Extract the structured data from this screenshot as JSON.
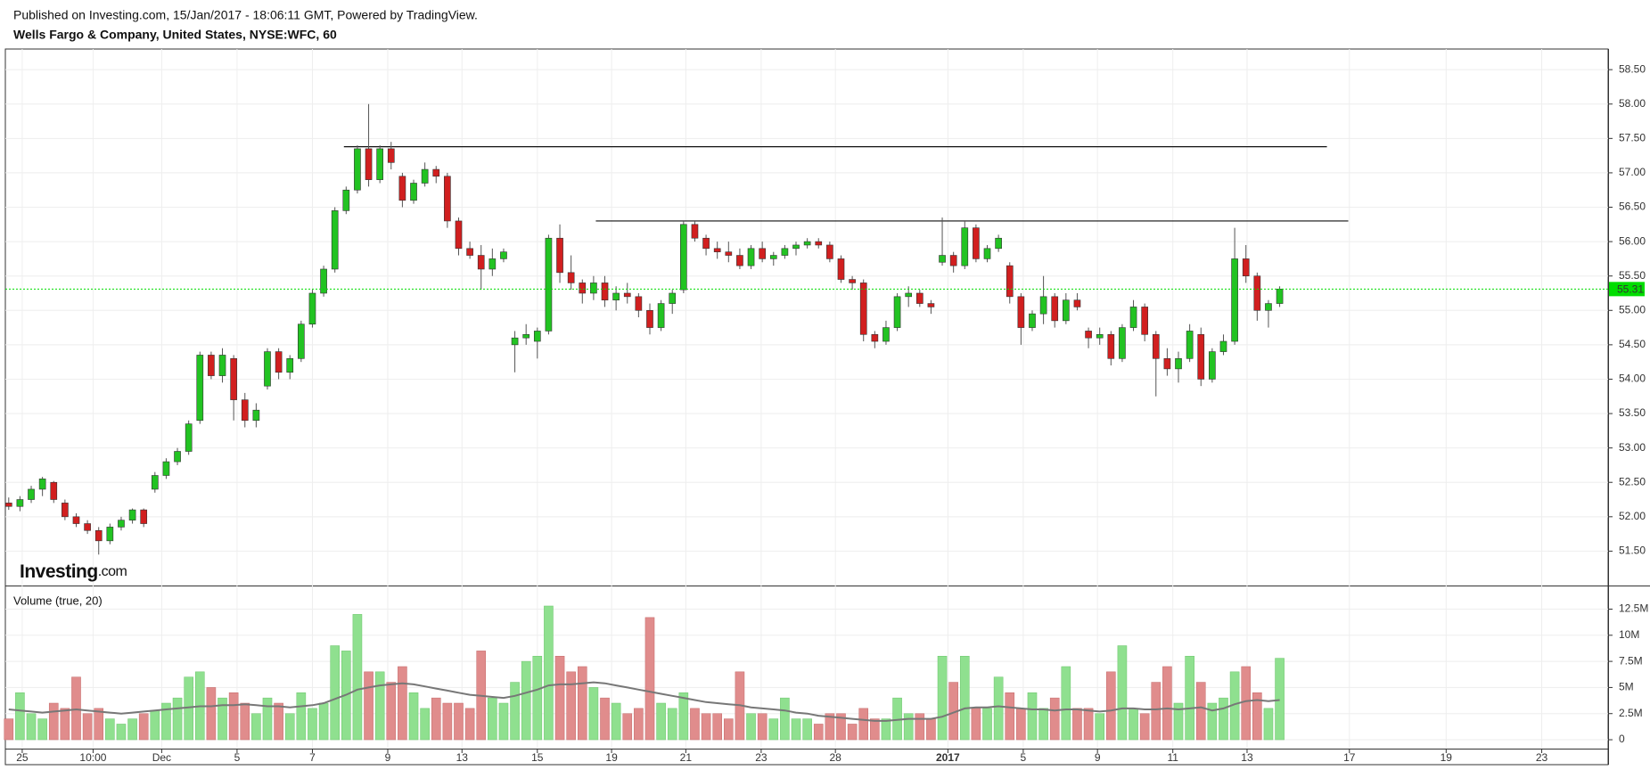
{
  "header": {
    "published": "Published on Investing.com, 15/Jan/2017 - 18:06:11 GMT, Powered by TradingView.",
    "symbol": "Wells Fargo & Company, United States, NYSE:WFC, 60"
  },
  "logo": {
    "brand": "Investing",
    "suffix": ".com"
  },
  "chart_data": [
    {
      "type": "candlestick",
      "up_color": "#22c322",
      "down_color": "#d11f1f",
      "grid": true,
      "xlim": [
        -0.3,
        142.2
      ],
      "ylim": [
        51.0,
        58.8
      ],
      "yticks": [
        {
          "value": 51.5,
          "label": "51.50"
        },
        {
          "value": 52,
          "label": "52.00"
        },
        {
          "value": 52.5,
          "label": "52.50"
        },
        {
          "value": 53,
          "label": "53.00"
        },
        {
          "value": 53.5,
          "label": "53.50"
        },
        {
          "value": 54,
          "label": "54.00"
        },
        {
          "value": 54.5,
          "label": "54.50"
        },
        {
          "value": 55,
          "label": "55.00"
        },
        {
          "value": 55.5,
          "label": "55.50"
        },
        {
          "value": 56,
          "label": "56.00"
        },
        {
          "value": 56.5,
          "label": "56.50"
        },
        {
          "value": 57,
          "label": "57.00"
        },
        {
          "value": 57.5,
          "label": "57.50"
        },
        {
          "value": 58,
          "label": "58.00"
        },
        {
          "value": 58.5,
          "label": "58.50"
        }
      ],
      "last_price": 55.31,
      "last_price_color": "#00dd00",
      "annotations": [
        {
          "y": 57.38,
          "x": [
            29.8,
            117.2
          ]
        },
        {
          "y": 56.3,
          "x": [
            52.2,
            119.1
          ]
        }
      ],
      "ohlc": [
        [
          52.2,
          52.28,
          52.1,
          52.15
        ],
        [
          52.15,
          52.3,
          52.08,
          52.25
        ],
        [
          52.25,
          52.45,
          52.2,
          52.4
        ],
        [
          52.4,
          52.58,
          52.3,
          52.55
        ],
        [
          52.5,
          52.52,
          52.2,
          52.25
        ],
        [
          52.2,
          52.25,
          51.95,
          52.0
        ],
        [
          52.0,
          52.05,
          51.85,
          51.9
        ],
        [
          51.9,
          51.95,
          51.75,
          51.8
        ],
        [
          51.8,
          51.85,
          51.45,
          51.65
        ],
        [
          51.65,
          51.9,
          51.6,
          51.85
        ],
        [
          51.85,
          52.0,
          51.8,
          51.95
        ],
        [
          51.95,
          52.12,
          51.9,
          52.1
        ],
        [
          52.1,
          52.12,
          51.85,
          51.9
        ],
        [
          52.4,
          52.65,
          52.35,
          52.6
        ],
        [
          52.6,
          52.85,
          52.55,
          52.8
        ],
        [
          52.8,
          53.0,
          52.75,
          52.95
        ],
        [
          52.95,
          53.4,
          52.9,
          53.35
        ],
        [
          53.4,
          54.4,
          53.35,
          54.35
        ],
        [
          54.35,
          54.4,
          54.0,
          54.05
        ],
        [
          54.05,
          54.45,
          53.95,
          54.35
        ],
        [
          54.3,
          54.35,
          53.4,
          53.7
        ],
        [
          53.7,
          53.8,
          53.3,
          53.4
        ],
        [
          53.4,
          53.65,
          53.3,
          53.55
        ],
        [
          53.9,
          54.45,
          53.85,
          54.4
        ],
        [
          54.4,
          54.45,
          54.0,
          54.1
        ],
        [
          54.1,
          54.35,
          54.0,
          54.3
        ],
        [
          54.3,
          54.85,
          54.25,
          54.8
        ],
        [
          54.8,
          55.3,
          54.75,
          55.25
        ],
        [
          55.25,
          55.65,
          55.2,
          55.6
        ],
        [
          55.6,
          56.5,
          55.55,
          56.45
        ],
        [
          56.45,
          56.8,
          56.4,
          56.75
        ],
        [
          56.75,
          57.4,
          56.7,
          57.35
        ],
        [
          57.35,
          58.0,
          56.8,
          56.9
        ],
        [
          56.9,
          57.4,
          56.85,
          57.35
        ],
        [
          57.35,
          57.45,
          57.05,
          57.15
        ],
        [
          56.95,
          57.0,
          56.5,
          56.6
        ],
        [
          56.6,
          56.9,
          56.55,
          56.85
        ],
        [
          56.85,
          57.15,
          56.8,
          57.05
        ],
        [
          57.05,
          57.1,
          56.85,
          56.95
        ],
        [
          56.95,
          57.0,
          56.2,
          56.3
        ],
        [
          56.3,
          56.35,
          55.8,
          55.9
        ],
        [
          55.9,
          56.0,
          55.75,
          55.8
        ],
        [
          55.8,
          55.95,
          55.3,
          55.6
        ],
        [
          55.6,
          55.9,
          55.5,
          55.75
        ],
        [
          55.75,
          55.9,
          55.7,
          55.85
        ],
        [
          54.5,
          54.7,
          54.1,
          54.6
        ],
        [
          54.6,
          54.8,
          54.5,
          54.65
        ],
        [
          54.55,
          54.75,
          54.3,
          54.7
        ],
        [
          54.7,
          56.1,
          54.65,
          56.05
        ],
        [
          56.05,
          56.25,
          55.4,
          55.55
        ],
        [
          55.55,
          55.8,
          55.3,
          55.4
        ],
        [
          55.4,
          55.45,
          55.1,
          55.25
        ],
        [
          55.25,
          55.5,
          55.15,
          55.4
        ],
        [
          55.4,
          55.5,
          55.05,
          55.15
        ],
        [
          55.15,
          55.35,
          55.0,
          55.25
        ],
        [
          55.25,
          55.4,
          55.1,
          55.2
        ],
        [
          55.2,
          55.25,
          54.9,
          55.0
        ],
        [
          55.0,
          55.1,
          54.65,
          54.75
        ],
        [
          54.75,
          55.15,
          54.7,
          55.1
        ],
        [
          55.1,
          55.3,
          54.95,
          55.25
        ],
        [
          55.3,
          56.3,
          55.25,
          56.25
        ],
        [
          56.25,
          56.3,
          56.0,
          56.05
        ],
        [
          56.05,
          56.1,
          55.8,
          55.9
        ],
        [
          55.9,
          56.0,
          55.75,
          55.85
        ],
        [
          55.85,
          56.0,
          55.7,
          55.8
        ],
        [
          55.8,
          55.9,
          55.6,
          55.65
        ],
        [
          55.65,
          55.95,
          55.6,
          55.9
        ],
        [
          55.9,
          56.0,
          55.7,
          55.75
        ],
        [
          55.75,
          55.85,
          55.65,
          55.8
        ],
        [
          55.8,
          55.95,
          55.75,
          55.9
        ],
        [
          55.9,
          56.0,
          55.8,
          55.95
        ],
        [
          55.95,
          56.05,
          55.9,
          56.0
        ],
        [
          56.0,
          56.05,
          55.9,
          55.95
        ],
        [
          55.95,
          56.0,
          55.7,
          55.75
        ],
        [
          55.75,
          55.8,
          55.4,
          55.45
        ],
        [
          55.45,
          55.5,
          55.3,
          55.4
        ],
        [
          55.4,
          55.45,
          54.55,
          54.65
        ],
        [
          54.65,
          54.7,
          54.45,
          54.55
        ],
        [
          54.55,
          54.85,
          54.5,
          54.75
        ],
        [
          54.75,
          55.25,
          54.7,
          55.2
        ],
        [
          55.2,
          55.35,
          55.05,
          55.25
        ],
        [
          55.25,
          55.3,
          55.05,
          55.1
        ],
        [
          55.1,
          55.15,
          54.95,
          55.05
        ],
        [
          55.7,
          56.35,
          55.65,
          55.8
        ],
        [
          55.8,
          55.85,
          55.55,
          55.65
        ],
        [
          55.65,
          56.3,
          55.6,
          56.2
        ],
        [
          56.2,
          56.25,
          55.7,
          55.75
        ],
        [
          55.75,
          55.95,
          55.7,
          55.9
        ],
        [
          55.9,
          56.1,
          55.85,
          56.05
        ],
        [
          55.65,
          55.7,
          55.1,
          55.2
        ],
        [
          55.2,
          55.25,
          54.5,
          54.75
        ],
        [
          54.75,
          55.0,
          54.7,
          54.95
        ],
        [
          54.95,
          55.5,
          54.8,
          55.2
        ],
        [
          55.2,
          55.25,
          54.75,
          54.85
        ],
        [
          54.85,
          55.25,
          54.8,
          55.15
        ],
        [
          55.15,
          55.25,
          55.0,
          55.05
        ],
        [
          54.7,
          54.75,
          54.45,
          54.6
        ],
        [
          54.6,
          54.75,
          54.5,
          54.65
        ],
        [
          54.65,
          54.7,
          54.2,
          54.3
        ],
        [
          54.3,
          54.8,
          54.25,
          54.75
        ],
        [
          54.75,
          55.15,
          54.7,
          55.05
        ],
        [
          55.05,
          55.1,
          54.55,
          54.65
        ],
        [
          54.65,
          54.7,
          53.75,
          54.3
        ],
        [
          54.3,
          54.45,
          54.05,
          54.15
        ],
        [
          54.15,
          54.4,
          53.95,
          54.3
        ],
        [
          54.3,
          54.8,
          54.25,
          54.7
        ],
        [
          54.65,
          54.75,
          53.9,
          54.0
        ],
        [
          54.0,
          54.45,
          53.95,
          54.4
        ],
        [
          54.4,
          54.65,
          54.35,
          54.55
        ],
        [
          54.55,
          56.2,
          54.5,
          55.75
        ],
        [
          55.75,
          55.95,
          55.4,
          55.5
        ],
        [
          55.5,
          55.55,
          54.85,
          55.0
        ],
        [
          55.0,
          55.15,
          54.75,
          55.1
        ],
        [
          55.1,
          55.35,
          55.05,
          55.31
        ]
      ]
    },
    {
      "type": "bar",
      "title": "Volume (true, 20)",
      "up_color": "#8fe08f",
      "down_color": "#e08c8c",
      "ma_color": "#777777",
      "grid": true,
      "xlim": [
        -0.3,
        142.2
      ],
      "ylim": [
        -0.85,
        14.76
      ],
      "yticks": [
        0,
        {
          "value": 2.5,
          "label": "2.5M"
        },
        {
          "value": 5,
          "label": "5M"
        },
        {
          "value": 7.5,
          "label": "7.5M"
        },
        {
          "value": 10,
          "label": "10M"
        },
        {
          "value": 12.5,
          "label": "12.5M"
        }
      ],
      "xticks": [
        {
          "value": 1.2,
          "label": "25"
        },
        {
          "value": 7.5,
          "label": "10:00"
        },
        {
          "value": 13.6,
          "label": "Dec"
        },
        {
          "value": 20.3,
          "label": "5"
        },
        {
          "value": 27.0,
          "label": "7"
        },
        {
          "value": 33.7,
          "label": "9"
        },
        {
          "value": 40.3,
          "label": "13"
        },
        {
          "value": 47.0,
          "label": "15"
        },
        {
          "value": 53.6,
          "label": "19"
        },
        {
          "value": 60.2,
          "label": "21"
        },
        {
          "value": 66.9,
          "label": "23"
        },
        {
          "value": 73.5,
          "label": "28"
        },
        {
          "value": 83.5,
          "label": "2017",
          "bold": true
        },
        {
          "value": 90.2,
          "label": "5"
        },
        {
          "value": 96.8,
          "label": "9"
        },
        {
          "value": 103.5,
          "label": "11"
        },
        {
          "value": 110.1,
          "label": "13"
        },
        {
          "value": 119.2,
          "label": "17"
        },
        {
          "value": 127.8,
          "label": "19"
        },
        {
          "value": 136.3,
          "label": "23"
        }
      ],
      "values": [
        2.0,
        4.5,
        2.5,
        2.0,
        3.5,
        3.0,
        6.0,
        2.5,
        3.0,
        2.0,
        1.5,
        2.0,
        2.5,
        2.8,
        3.5,
        4.0,
        6.0,
        6.5,
        5.0,
        4.0,
        4.5,
        3.5,
        2.5,
        4.0,
        3.5,
        2.5,
        4.5,
        3.0,
        3.5,
        9.0,
        8.5,
        12.0,
        6.5,
        6.5,
        5.5,
        7.0,
        4.5,
        3.0,
        4.0,
        3.5,
        3.5,
        3.0,
        8.5,
        4.0,
        3.5,
        5.5,
        7.5,
        8.0,
        12.8,
        8.0,
        6.5,
        7.0,
        5.0,
        4.0,
        3.5,
        2.5,
        3.0,
        11.7,
        3.5,
        3.0,
        4.5,
        3.0,
        2.5,
        2.5,
        2.0,
        6.5,
        2.5,
        2.5,
        2.0,
        4.0,
        2.0,
        2.0,
        1.5,
        2.5,
        2.5,
        1.5,
        3.0,
        2.0,
        2.0,
        4.0,
        2.5,
        2.5,
        2.0,
        8.0,
        5.5,
        8.0,
        3.0,
        3.0,
        6.0,
        4.5,
        3.0,
        4.5,
        3.0,
        4.0,
        7.0,
        3.0,
        3.0,
        2.5,
        6.5,
        9.0,
        3.0,
        2.5,
        5.5,
        7.0,
        3.5,
        8.0,
        5.5,
        3.5,
        4.0,
        6.5,
        7.0,
        4.5,
        3.0,
        7.8
      ],
      "ma": [
        2.9,
        2.8,
        2.7,
        2.6,
        2.7,
        2.8,
        2.9,
        2.8,
        2.7,
        2.6,
        2.5,
        2.6,
        2.7,
        2.8,
        2.9,
        3.0,
        3.1,
        3.2,
        3.2,
        3.3,
        3.3,
        3.4,
        3.3,
        3.2,
        3.2,
        3.1,
        3.2,
        3.3,
        3.5,
        3.9,
        4.3,
        4.8,
        5.0,
        5.2,
        5.3,
        5.4,
        5.3,
        5.1,
        4.9,
        4.7,
        4.5,
        4.3,
        4.2,
        4.1,
        4.0,
        4.2,
        4.5,
        4.8,
        5.2,
        5.3,
        5.3,
        5.4,
        5.5,
        5.4,
        5.2,
        5.0,
        4.8,
        4.6,
        4.4,
        4.2,
        4.0,
        3.8,
        3.6,
        3.5,
        3.4,
        3.3,
        3.1,
        3.0,
        2.9,
        2.8,
        2.6,
        2.5,
        2.3,
        2.2,
        2.1,
        2.0,
        1.9,
        1.8,
        1.8,
        1.9,
        2.0,
        2.0,
        2.0,
        2.2,
        2.6,
        3.0,
        3.1,
        3.1,
        3.2,
        3.1,
        3.0,
        2.9,
        2.9,
        2.8,
        2.9,
        2.9,
        2.8,
        2.7,
        2.8,
        3.0,
        3.0,
        2.9,
        2.9,
        3.0,
        2.9,
        3.0,
        3.1,
        2.8,
        3.0,
        3.4,
        3.7,
        3.8,
        3.7,
        3.8
      ]
    }
  ]
}
